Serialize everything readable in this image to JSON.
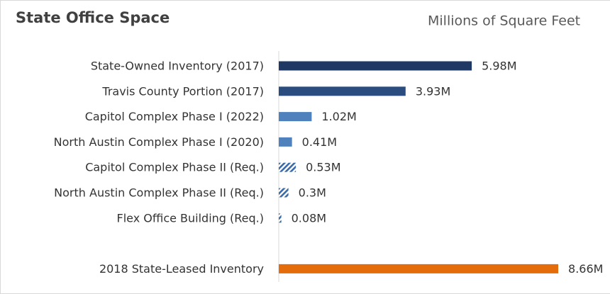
{
  "chart_data": {
    "type": "hbar",
    "title": "State Office Space",
    "subtitle": "Millions of Square Feet",
    "categories": [
      "State-Owned Inventory (2017)",
      "Travis County Portion (2017)",
      "Capitol Complex Phase I (2022)",
      "North Austin Complex Phase I (2020)",
      "Capitol Complex Phase II (Req.)",
      "North Austin Complex Phase II (Req.)",
      "Flex Office Building (Req.)",
      null,
      "2018 State-Leased Inventory"
    ],
    "values": [
      5.98,
      3.93,
      1.02,
      0.41,
      0.53,
      0.3,
      0.08,
      null,
      8.66
    ],
    "value_labels": [
      "5.98M",
      "3.93M",
      "1.02M",
      "0.41M",
      "0.53M",
      "0.3M",
      "0.08M",
      null,
      "8.66M"
    ],
    "colors": [
      "#1f3864",
      "#2b4c7e",
      "#4f81bd",
      "#4f81bd",
      "#3a6aa8",
      "#3a6aa8",
      "#3a6aa8",
      null,
      "#e46c0a"
    ],
    "fills": [
      "solid",
      "solid",
      "solid",
      "solid",
      "hatch",
      "hatch",
      "hatch",
      null,
      "solid"
    ],
    "xlim": [
      0,
      10
    ]
  }
}
